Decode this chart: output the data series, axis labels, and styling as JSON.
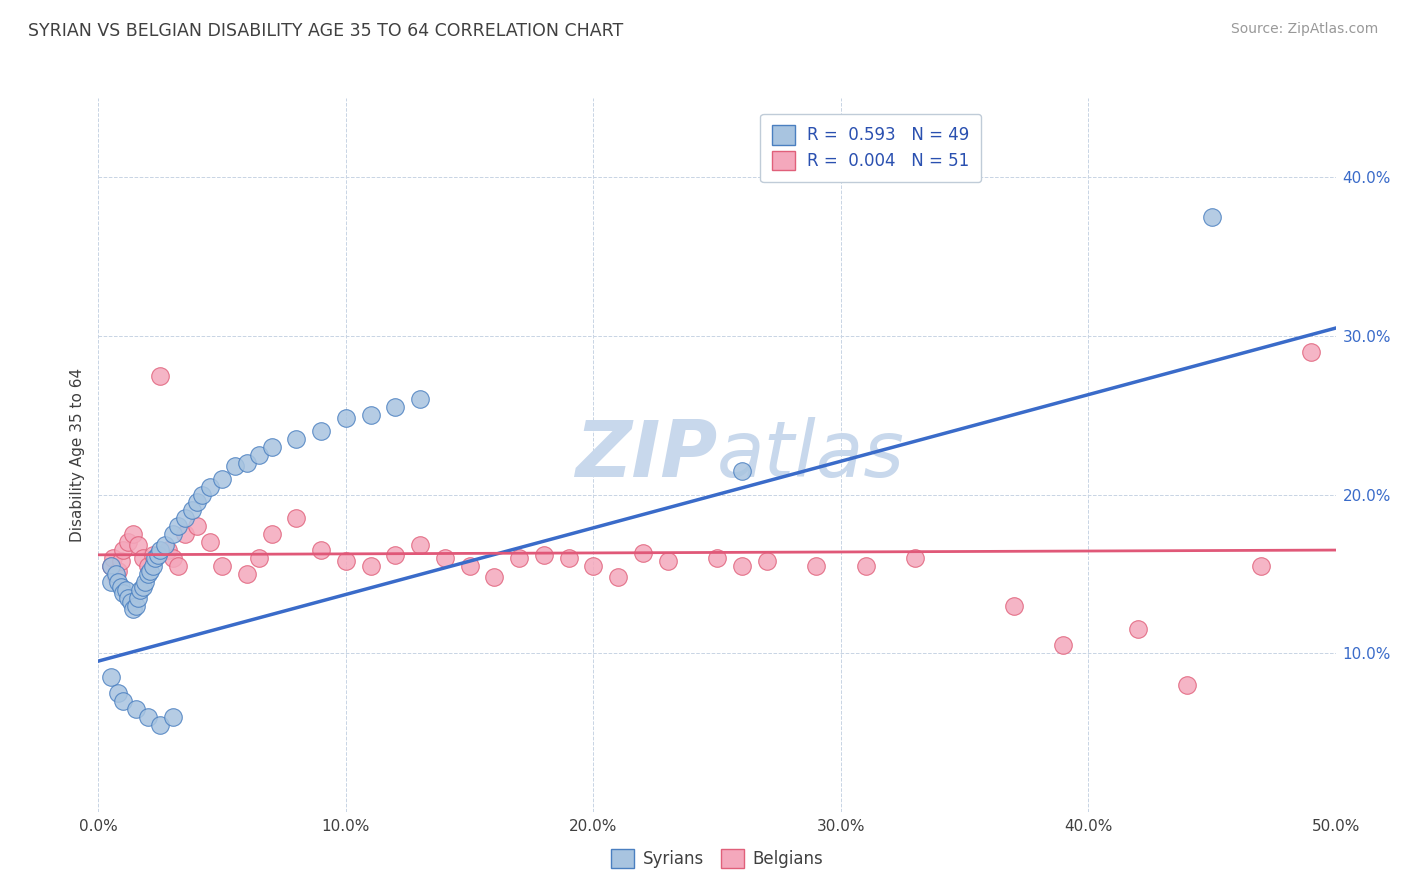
{
  "title": "SYRIAN VS BELGIAN DISABILITY AGE 35 TO 64 CORRELATION CHART",
  "source_text": "Source: ZipAtlas.com",
  "ylabel": "Disability Age 35 to 64",
  "xlim": [
    0.0,
    0.5
  ],
  "ylim": [
    0.0,
    0.45
  ],
  "xticks": [
    0.0,
    0.1,
    0.2,
    0.3,
    0.4,
    0.5
  ],
  "xtick_labels": [
    "0.0%",
    "10.0%",
    "20.0%",
    "30.0%",
    "40.0%",
    "50.0%"
  ],
  "yticks": [
    0.1,
    0.2,
    0.3,
    0.4
  ],
  "ytick_labels": [
    "10.0%",
    "20.0%",
    "30.0%",
    "40.0%"
  ],
  "legend_r_syrian": "R =  0.593",
  "legend_n_syrian": "N = 49",
  "legend_r_belgian": "R =  0.004",
  "legend_n_belgian": "N = 51",
  "syrian_color": "#a8c4e0",
  "belgian_color": "#f4a8bc",
  "syrian_edge_color": "#4a7fc0",
  "belgian_edge_color": "#e0607a",
  "syrian_line_color": "#3a6bc9",
  "belgian_line_color": "#e05878",
  "background_color": "#ffffff",
  "grid_color": "#c8d4e4",
  "title_color": "#404040",
  "axis_label_color": "#404040",
  "watermark_color": "#c8d8ec",
  "syrian_scatter_x": [
    0.005,
    0.005,
    0.007,
    0.008,
    0.009,
    0.01,
    0.011,
    0.012,
    0.013,
    0.014,
    0.015,
    0.016,
    0.017,
    0.018,
    0.019,
    0.02,
    0.021,
    0.022,
    0.023,
    0.024,
    0.025,
    0.027,
    0.03,
    0.032,
    0.035,
    0.038,
    0.04,
    0.042,
    0.045,
    0.05,
    0.055,
    0.06,
    0.065,
    0.07,
    0.08,
    0.09,
    0.1,
    0.11,
    0.12,
    0.13,
    0.005,
    0.008,
    0.01,
    0.015,
    0.02,
    0.025,
    0.03,
    0.26,
    0.45
  ],
  "syrian_scatter_y": [
    0.155,
    0.145,
    0.15,
    0.145,
    0.142,
    0.138,
    0.14,
    0.135,
    0.132,
    0.128,
    0.13,
    0.135,
    0.14,
    0.142,
    0.145,
    0.15,
    0.152,
    0.155,
    0.16,
    0.162,
    0.165,
    0.168,
    0.175,
    0.18,
    0.185,
    0.19,
    0.195,
    0.2,
    0.205,
    0.21,
    0.218,
    0.22,
    0.225,
    0.23,
    0.235,
    0.24,
    0.248,
    0.25,
    0.255,
    0.26,
    0.085,
    0.075,
    0.07,
    0.065,
    0.06,
    0.055,
    0.06,
    0.215,
    0.375
  ],
  "belgian_scatter_x": [
    0.005,
    0.006,
    0.007,
    0.008,
    0.009,
    0.01,
    0.012,
    0.014,
    0.016,
    0.018,
    0.02,
    0.022,
    0.025,
    0.028,
    0.03,
    0.032,
    0.035,
    0.04,
    0.045,
    0.05,
    0.06,
    0.065,
    0.07,
    0.08,
    0.09,
    0.1,
    0.11,
    0.12,
    0.13,
    0.14,
    0.15,
    0.16,
    0.17,
    0.18,
    0.19,
    0.2,
    0.21,
    0.22,
    0.23,
    0.25,
    0.26,
    0.27,
    0.29,
    0.31,
    0.33,
    0.37,
    0.39,
    0.42,
    0.44,
    0.47,
    0.49
  ],
  "belgian_scatter_y": [
    0.155,
    0.16,
    0.148,
    0.152,
    0.158,
    0.165,
    0.17,
    0.175,
    0.168,
    0.16,
    0.155,
    0.162,
    0.275,
    0.165,
    0.16,
    0.155,
    0.175,
    0.18,
    0.17,
    0.155,
    0.15,
    0.16,
    0.175,
    0.185,
    0.165,
    0.158,
    0.155,
    0.162,
    0.168,
    0.16,
    0.155,
    0.148,
    0.16,
    0.162,
    0.16,
    0.155,
    0.148,
    0.163,
    0.158,
    0.16,
    0.155,
    0.158,
    0.155,
    0.155,
    0.16,
    0.13,
    0.105,
    0.115,
    0.08,
    0.155,
    0.29
  ],
  "syrian_line_x": [
    0.0,
    0.5
  ],
  "syrian_line_y": [
    0.095,
    0.305
  ],
  "belgian_line_x": [
    0.0,
    0.5
  ],
  "belgian_line_y": [
    0.162,
    0.165
  ]
}
